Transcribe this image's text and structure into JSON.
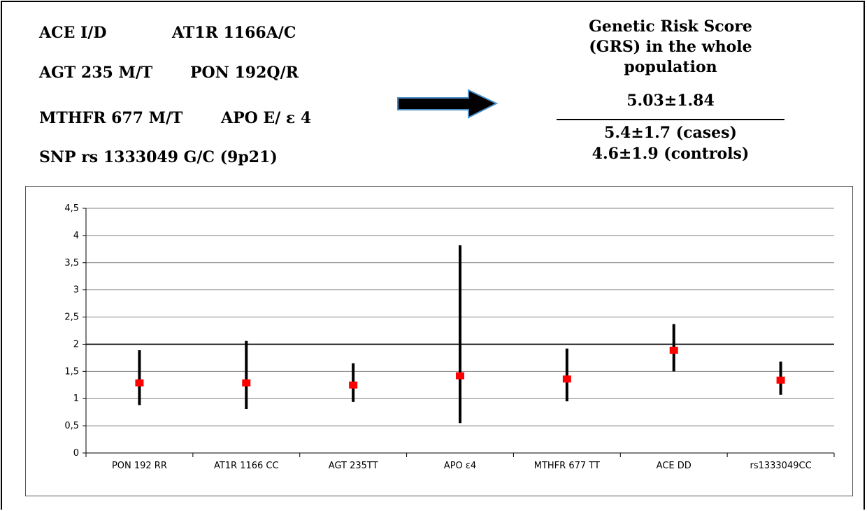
{
  "genes": {
    "ace": "ACE I/D",
    "at1r": "AT1R 1166A/C",
    "agt": "AGT 235 M/T",
    "pon": "PON 192Q/R",
    "mthfr": "MTHFR 677 M/T",
    "apo": "APO E/ ε 4",
    "snp": "SNP rs 1333049 G/C (9p21)"
  },
  "grs": {
    "line1": "Genetic Risk Score",
    "line2": "(GRS) in the whole",
    "line3": "population",
    "whole_value": "5.03±1.84",
    "cases": "5.4±1.7 (cases)",
    "controls": "4.6±1.9 (controls)"
  },
  "chart_data": {
    "type": "scatter",
    "categories": [
      "PON 192 RR",
      "AT1R 1166 CC",
      "AGT 235TT",
      "APO ε4",
      "MTHFR 677 TT",
      "ACE DD",
      "rs1333049CC"
    ],
    "values": [
      1.29,
      1.29,
      1.25,
      1.42,
      1.36,
      1.89,
      1.34
    ],
    "lower": [
      0.88,
      0.81,
      0.94,
      0.55,
      0.95,
      1.5,
      1.07
    ],
    "upper": [
      1.89,
      2.06,
      1.65,
      3.82,
      1.92,
      2.37,
      1.68
    ],
    "ylim": [
      0,
      4.5
    ],
    "yticks": [
      "0",
      "0,5",
      "1",
      "1,5",
      "2",
      "2,5",
      "3",
      "3,5",
      "4",
      "4,5"
    ],
    "reference_line": 2,
    "grid": true,
    "colors": {
      "point": "#ff0000",
      "error_bar": "#000000",
      "grid": "#808080"
    }
  }
}
